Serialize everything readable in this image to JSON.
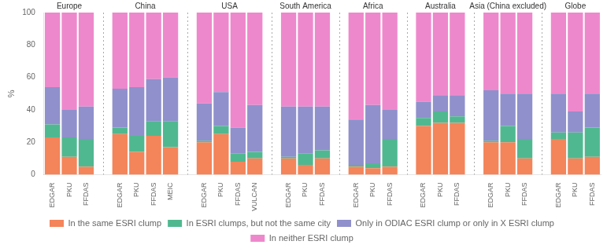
{
  "chart_data": {
    "type": "bar",
    "stacked": true,
    "ylabel": "%",
    "ylim": [
      0,
      100
    ],
    "yticks": [
      0,
      20,
      40,
      60,
      80,
      100
    ],
    "grid": false,
    "legend": "bottom",
    "groups": [
      {
        "name": "Europe",
        "categories": [
          "EDGAR",
          "PKU",
          "FFDAS"
        ]
      },
      {
        "name": "China",
        "categories": [
          "EDGAR",
          "PKU",
          "FFDAS",
          "MEIC"
        ]
      },
      {
        "name": "USA",
        "categories": [
          "EDGAR",
          "PKU",
          "FFDAS",
          "VULCAN"
        ]
      },
      {
        "name": "South America",
        "categories": [
          "EDGAR",
          "PKU",
          "FFDAS"
        ]
      },
      {
        "name": "Africa",
        "categories": [
          "EDGAR",
          "PKU",
          "FFDAS"
        ]
      },
      {
        "name": "Australia",
        "categories": [
          "EDGAR",
          "PKU",
          "FFDAS"
        ]
      },
      {
        "name": "Asia (China excluded)",
        "categories": [
          "EDGAR",
          "PKU",
          "FFDAS"
        ]
      },
      {
        "name": "Globe",
        "categories": [
          "EDGAR",
          "PKU",
          "FFDAS"
        ]
      }
    ],
    "series": [
      {
        "name": "In the same ESRI clump",
        "color": "#F4845A",
        "values": [
          23,
          11,
          5,
          25,
          14,
          24,
          17,
          20,
          25,
          8,
          10,
          10,
          6,
          10,
          5,
          4,
          5,
          30,
          32,
          32,
          20,
          20,
          10,
          22,
          10,
          11
        ]
      },
      {
        "name": "In ESRI clumps, but not the same city",
        "color": "#50B890",
        "values": [
          8,
          12,
          17,
          4,
          10,
          9,
          16,
          1,
          5,
          5,
          4,
          1,
          7,
          5,
          1,
          3,
          17,
          5,
          7,
          4,
          1,
          10,
          12,
          4,
          16,
          18
        ]
      },
      {
        "name": "Only in ODIAC ESRI clump or only in X ESRI clump",
        "color": "#9090CC",
        "values": [
          23,
          17,
          20,
          24,
          30,
          26,
          27,
          23,
          21,
          16,
          29,
          31,
          29,
          27,
          28,
          36,
          18,
          10,
          10,
          13,
          31,
          20,
          28,
          24,
          13,
          21
        ]
      },
      {
        "name": "In neither ESRI clump",
        "color": "#EE88CC",
        "values": [
          46,
          60,
          58,
          47,
          46,
          41,
          40,
          56,
          49,
          71,
          57,
          58,
          58,
          58,
          66,
          57,
          60,
          55,
          51,
          51,
          48,
          50,
          50,
          50,
          61,
          50
        ]
      }
    ]
  }
}
